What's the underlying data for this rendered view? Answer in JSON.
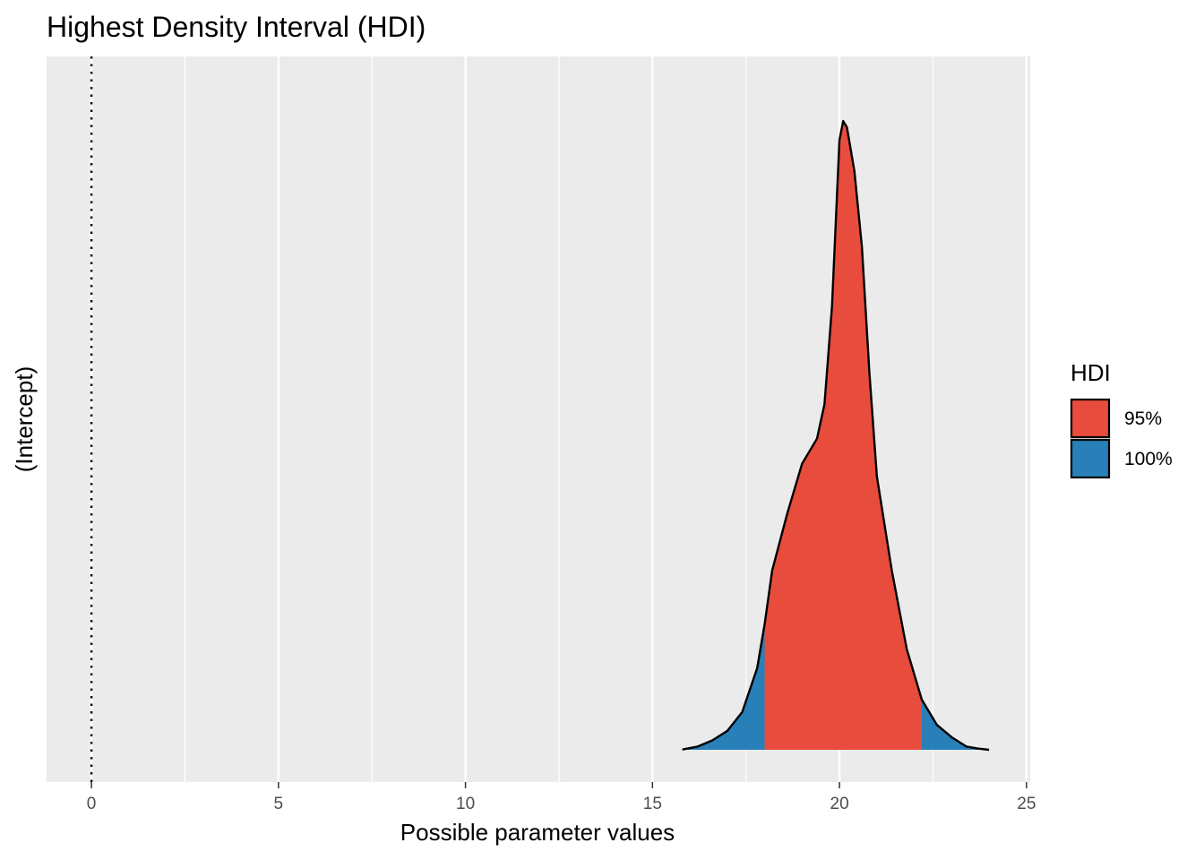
{
  "chart_data": {
    "type": "area",
    "title": "Highest Density Interval (HDI)",
    "xlabel": "Possible parameter values",
    "ylabel": "(Intercept)",
    "xlim": [
      -1.2,
      25.1
    ],
    "x_ticks": [
      0,
      5,
      10,
      15,
      20,
      25
    ],
    "x_tick_labels": [
      "0",
      "5",
      "10",
      "15",
      "20",
      "25"
    ],
    "x_minor_ticks": [
      2.5,
      7.5,
      12.5,
      17.5,
      22.5
    ],
    "reference_line": {
      "x": 0,
      "style": "dotted"
    },
    "grid": true,
    "density": {
      "x": [
        15.8,
        16.2,
        16.6,
        17.0,
        17.4,
        17.8,
        18.0,
        18.2,
        18.6,
        19.0,
        19.4,
        19.6,
        19.8,
        20.0,
        20.1,
        20.2,
        20.4,
        20.6,
        20.8,
        21.0,
        21.4,
        21.8,
        22.2,
        22.6,
        23.0,
        23.4,
        23.7,
        24.0
      ],
      "y": [
        0.001,
        0.01,
        0.03,
        0.06,
        0.12,
        0.26,
        0.4,
        0.57,
        0.75,
        0.91,
        0.99,
        1.1,
        1.41,
        1.94,
        2.0,
        1.98,
        1.84,
        1.6,
        1.2,
        0.87,
        0.57,
        0.32,
        0.16,
        0.08,
        0.04,
        0.01,
        0.004,
        0.0
      ],
      "ymax": 2.1
    },
    "series": [
      {
        "name": "95%",
        "color": "#e84c3d",
        "interval": [
          18.0,
          22.2
        ]
      },
      {
        "name": "100%",
        "color": "#2980b9",
        "interval": [
          15.8,
          24.0
        ]
      }
    ],
    "legend": {
      "title": "HDI",
      "position": "right"
    }
  }
}
